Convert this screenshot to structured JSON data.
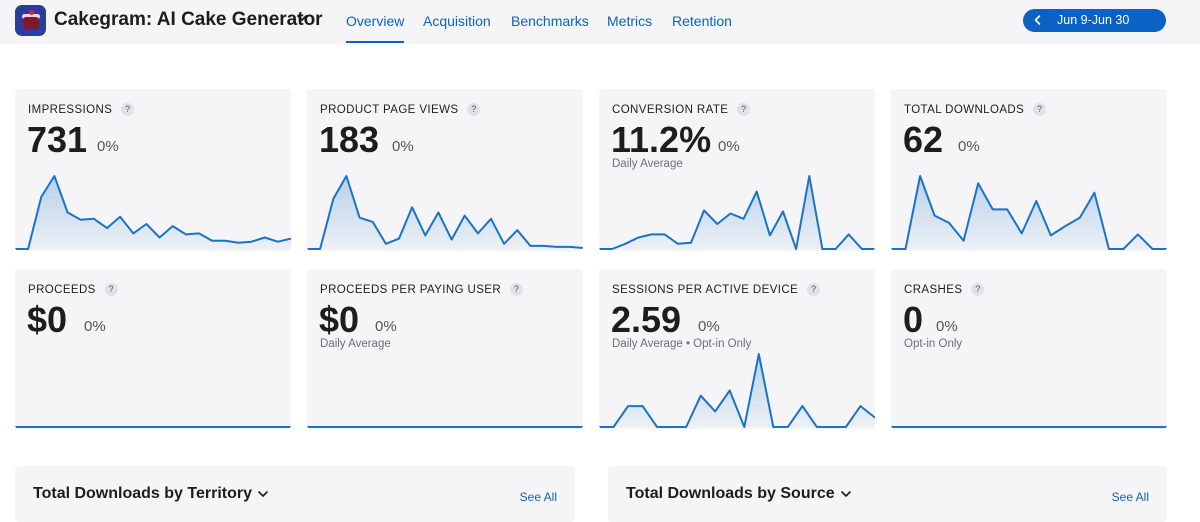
{
  "app": {
    "title": "Cakegram: AI Cake Generator",
    "icon": "cake-app-icon"
  },
  "tabs": [
    {
      "label": "Overview",
      "active": true
    },
    {
      "label": "Acquisition",
      "active": false
    },
    {
      "label": "Benchmarks",
      "active": false
    },
    {
      "label": "Metrics",
      "active": false
    },
    {
      "label": "Retention",
      "active": false
    }
  ],
  "date_range": {
    "label": "Jun 9-Jun 30",
    "prev_icon": "chevron-left-icon"
  },
  "colors": {
    "accent": "#0b62c4",
    "card_bg": "#f5f5f7",
    "line": "#1a73c8"
  },
  "metrics": [
    {
      "title": "IMPRESSIONS",
      "value": "731",
      "change": "0%",
      "sub": "",
      "series": [
        0,
        0,
        50,
        70,
        35,
        28,
        29,
        20,
        31,
        15,
        24,
        11,
        22,
        14,
        15,
        8,
        8,
        6,
        7,
        11,
        7,
        10
      ]
    },
    {
      "title": "PRODUCT PAGE VIEWS",
      "value": "183",
      "change": "0%",
      "sub": "",
      "series": [
        0,
        0,
        48,
        70,
        30,
        26,
        5,
        10,
        40,
        13,
        35,
        9,
        32,
        15,
        29,
        5,
        18,
        3,
        3,
        2,
        2,
        1
      ]
    },
    {
      "title": "CONVERSION RATE",
      "value": "11.2%",
      "change": "0%",
      "sub": "Daily Average",
      "series": [
        0,
        0,
        5,
        11,
        14,
        14,
        5,
        6,
        37,
        24,
        34,
        29,
        55,
        13,
        36,
        0,
        70,
        0,
        0,
        14,
        0,
        0
      ]
    },
    {
      "title": "TOTAL DOWNLOADS",
      "value": "62",
      "change": "0%",
      "sub": "",
      "series": [
        0,
        0,
        70,
        32,
        25,
        8,
        63,
        38,
        38,
        15,
        46,
        13,
        22,
        30,
        54,
        0,
        0,
        14,
        0,
        0
      ]
    },
    {
      "title": "PROCEEDS",
      "value": "$0",
      "change": "0%",
      "sub": "",
      "series": [
        0,
        0
      ]
    },
    {
      "title": "PROCEEDS PER PAYING USER",
      "value": "$0",
      "change": "0%",
      "sub": "Daily Average",
      "series": [
        0,
        0
      ]
    },
    {
      "title": "SESSIONS PER ACTIVE DEVICE",
      "value": "2.59",
      "change": "0%",
      "sub": "Daily Average • Opt-in Only",
      "series": [
        0,
        0,
        20,
        20,
        0,
        0,
        0,
        30,
        15,
        35,
        0,
        70,
        0,
        0,
        20,
        0,
        0,
        0,
        20,
        9
      ]
    },
    {
      "title": "CRASHES",
      "value": "0",
      "change": "0%",
      "sub": "Opt-in Only",
      "series": [
        0,
        0
      ]
    }
  ],
  "sections": [
    {
      "title": "Total Downloads by Territory",
      "link": "See All"
    },
    {
      "title": "Total Downloads by Source",
      "link": "See All"
    }
  ]
}
